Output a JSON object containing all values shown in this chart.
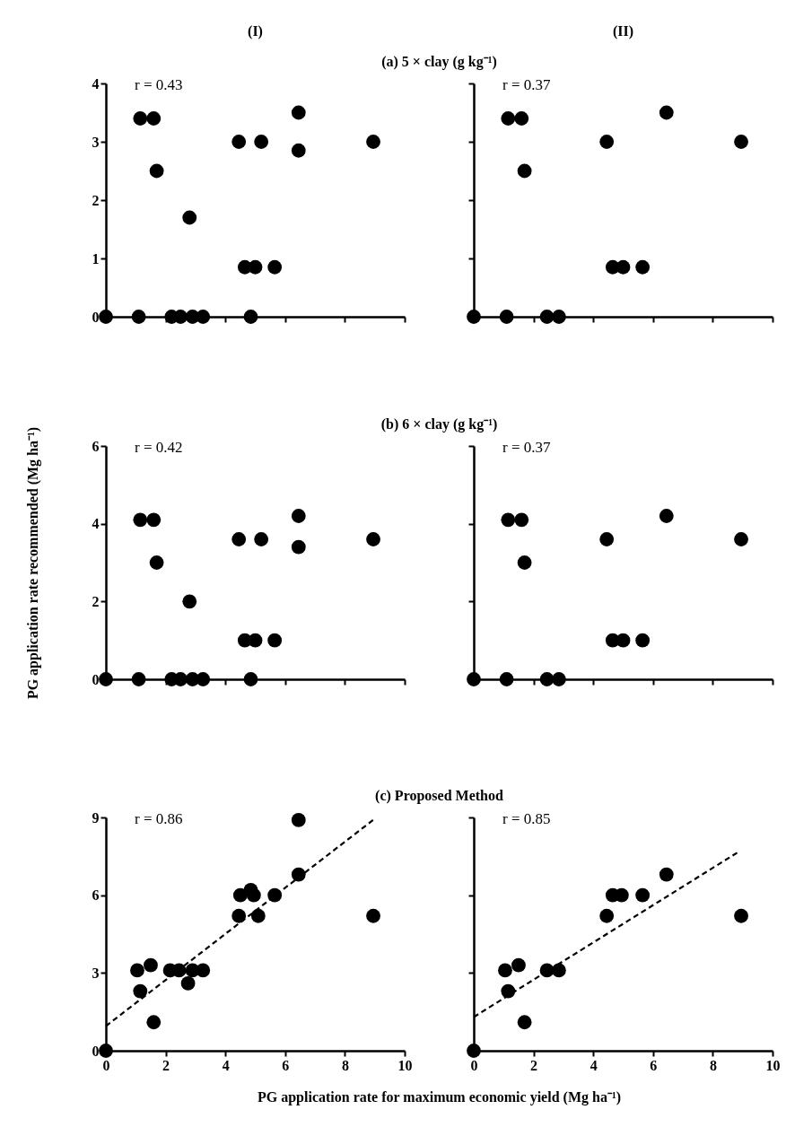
{
  "chart_data": [
    {
      "type": "scatter",
      "title": "(I)",
      "subtitle": "(a) 5 × clay (g kg⁻¹)",
      "annotations": [
        "r = 0.43"
      ],
      "xlim": [
        0,
        10
      ],
      "xticks": [
        0,
        2,
        4,
        6,
        8,
        10
      ],
      "ylim": [
        0,
        4
      ],
      "yticks": [
        0,
        1,
        2,
        3,
        4
      ],
      "tick_labels": "y",
      "series": [
        {
          "marker": "circle",
          "color": "#000000",
          "x": [
            0,
            1.1,
            1.15,
            1.6,
            1.7,
            2.2,
            2.5,
            2.8,
            2.9,
            3.25,
            4.45,
            4.65,
            4.85,
            5.0,
            5.2,
            5.65,
            6.45,
            6.45,
            8.95
          ],
          "values": [
            0,
            0,
            3.4,
            3.4,
            2.5,
            0,
            0,
            1.7,
            0,
            0,
            3.0,
            0.85,
            0,
            0.85,
            3.0,
            0.85,
            3.5,
            2.85,
            3.0
          ]
        }
      ]
    },
    {
      "type": "scatter",
      "title": "(II)",
      "annotations": [
        "r = 0.37"
      ],
      "xlim": [
        0,
        10
      ],
      "xticks": [
        0,
        2,
        4,
        6,
        8,
        10
      ],
      "ylim": [
        0,
        4
      ],
      "yticks": [
        0,
        1,
        2,
        3,
        4
      ],
      "tick_labels": false,
      "series": [
        {
          "marker": "circle",
          "color": "#000000",
          "x": [
            0,
            1.1,
            1.15,
            1.6,
            1.7,
            2.45,
            2.85,
            4.45,
            4.65,
            5.0,
            5.65,
            6.45,
            8.95
          ],
          "values": [
            0,
            0,
            3.4,
            3.4,
            2.5,
            0,
            0,
            3.0,
            0.85,
            0.85,
            0.85,
            3.5,
            3.0
          ]
        }
      ]
    },
    {
      "type": "scatter",
      "title": "(b) 6 × clay (g kg⁻¹)",
      "ylabel": "PG application rate recommended (Mg ha⁻¹)",
      "annotations": [
        "r = 0.42"
      ],
      "xlim": [
        0,
        10
      ],
      "xticks": [
        0,
        2,
        4,
        6,
        8,
        10
      ],
      "ylim": [
        0,
        6
      ],
      "yticks": [
        0,
        2,
        4,
        6
      ],
      "tick_labels": "y",
      "series": [
        {
          "marker": "circle",
          "color": "#000000",
          "x": [
            0,
            1.1,
            1.15,
            1.6,
            1.7,
            2.2,
            2.5,
            2.8,
            2.9,
            3.25,
            4.45,
            4.65,
            4.85,
            5.0,
            5.2,
            5.65,
            6.45,
            6.45,
            8.95
          ],
          "values": [
            0,
            0,
            4.1,
            4.1,
            3.0,
            0,
            0,
            2.0,
            0,
            0,
            3.6,
            1.0,
            0,
            1.0,
            3.6,
            1.0,
            4.2,
            3.4,
            3.6
          ]
        }
      ]
    },
    {
      "type": "scatter",
      "annotations": [
        "r = 0.37"
      ],
      "xlim": [
        0,
        10
      ],
      "xticks": [
        0,
        2,
        4,
        6,
        8,
        10
      ],
      "ylim": [
        0,
        6
      ],
      "yticks": [
        0,
        2,
        4,
        6
      ],
      "tick_labels": false,
      "series": [
        {
          "marker": "circle",
          "color": "#000000",
          "x": [
            0,
            1.1,
            1.15,
            1.6,
            1.7,
            2.45,
            2.85,
            4.45,
            4.65,
            5.0,
            5.65,
            6.45,
            8.95
          ],
          "values": [
            0,
            0,
            4.1,
            4.1,
            3.0,
            0,
            0,
            3.6,
            1.0,
            1.0,
            1.0,
            4.2,
            3.6
          ]
        }
      ]
    },
    {
      "type": "scatter",
      "title": "(c) Proposed Method",
      "xlabel": "PG application rate for maximum economic yield (Mg ha⁻¹)",
      "annotations": [
        "r = 0.86"
      ],
      "xlim": [
        0,
        10
      ],
      "xticks": [
        0,
        2,
        4,
        6,
        8,
        10
      ],
      "ylim": [
        0,
        9
      ],
      "yticks": [
        0,
        3,
        6,
        9
      ],
      "series": [
        {
          "marker": "circle",
          "color": "#000000",
          "x": [
            0,
            1.05,
            1.15,
            1.5,
            1.6,
            2.15,
            2.45,
            2.75,
            2.9,
            3.25,
            4.45,
            4.5,
            4.85,
            4.95,
            5.1,
            5.65,
            6.45,
            6.45,
            8.95
          ],
          "values": [
            0,
            3.1,
            2.3,
            3.3,
            1.1,
            3.1,
            3.1,
            2.6,
            3.1,
            3.1,
            5.2,
            6.0,
            6.2,
            6.0,
            5.2,
            6.0,
            8.9,
            6.8,
            5.2
          ]
        },
        {
          "type": "line",
          "line_style": "dashed",
          "color": "#000000",
          "x": [
            0,
            9
          ],
          "values": [
            0.95,
            8.95
          ]
        }
      ]
    },
    {
      "type": "scatter",
      "annotations": [
        "r = 0.85"
      ],
      "xlim": [
        0,
        10
      ],
      "xticks": [
        0,
        2,
        4,
        6,
        8,
        10
      ],
      "ylim": [
        0,
        9
      ],
      "yticks": [
        0,
        3,
        6,
        9
      ],
      "tick_labels": "x",
      "series": [
        {
          "marker": "circle",
          "color": "#000000",
          "x": [
            0,
            1.05,
            1.15,
            1.5,
            1.7,
            2.45,
            2.85,
            4.45,
            4.65,
            4.95,
            5.65,
            6.45,
            8.95
          ],
          "values": [
            0,
            3.1,
            2.3,
            3.3,
            1.1,
            3.1,
            3.1,
            5.2,
            6.0,
            6.0,
            6.0,
            6.8,
            5.2
          ]
        },
        {
          "type": "line",
          "line_style": "dashed",
          "color": "#000000",
          "x": [
            0,
            8.9
          ],
          "values": [
            1.3,
            7.7
          ]
        }
      ]
    }
  ]
}
